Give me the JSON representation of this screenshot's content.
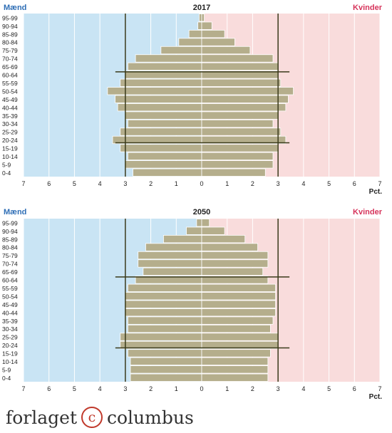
{
  "logo": {
    "before": "forlaget",
    "mark": "c",
    "after": "columbus"
  },
  "colors": {
    "men_bg": "#c9e4f4",
    "women_bg": "#f9dcdc",
    "bar": "#b5ae8c",
    "men_text": "#2d6db5",
    "women_text": "#d6335a",
    "guide": "#3a3a1a"
  },
  "chart_data": [
    {
      "type": "bar",
      "title": "2017",
      "left_label": "Mænd",
      "right_label": "Kvinder",
      "unit_label": "Pct.",
      "xlim": [
        -7,
        7
      ],
      "x_ticks": [
        "7",
        "6",
        "5",
        "4",
        "3",
        "2",
        "1",
        "0",
        "1",
        "2",
        "3",
        "4",
        "5",
        "6",
        "7"
      ],
      "categories": [
        "95-99",
        "90-94",
        "85-89",
        "80-84",
        "75-79",
        "70-74",
        "65-69",
        "60-64",
        "55-59",
        "50-54",
        "45-49",
        "40-44",
        "35-39",
        "30-34",
        "25-29",
        "20-24",
        "15-19",
        "10-14",
        "5-9",
        "0-4"
      ],
      "series": [
        {
          "name": "Mænd",
          "values": [
            0.1,
            0.15,
            0.5,
            0.9,
            1.6,
            2.6,
            2.9,
            3.0,
            3.2,
            3.7,
            3.4,
            3.3,
            3.0,
            2.9,
            3.2,
            3.5,
            3.2,
            2.9,
            3.0,
            2.7
          ]
        },
        {
          "name": "Kvinder",
          "values": [
            0.1,
            0.4,
            0.9,
            1.3,
            1.9,
            2.8,
            3.0,
            3.0,
            3.1,
            3.6,
            3.4,
            3.3,
            3.0,
            2.8,
            3.1,
            3.3,
            3.0,
            2.8,
            2.8,
            2.5
          ]
        }
      ]
    },
    {
      "type": "bar",
      "title": "2050",
      "left_label": "Mænd",
      "right_label": "Kvinder",
      "unit_label": "Pct.",
      "xlim": [
        -7,
        7
      ],
      "x_ticks": [
        "7",
        "6",
        "5",
        "4",
        "3",
        "2",
        "1",
        "0",
        "1",
        "2",
        "3",
        "4",
        "5",
        "6",
        "7"
      ],
      "categories": [
        "95-99",
        "90-94",
        "85-89",
        "80-84",
        "75-79",
        "70-74",
        "65-69",
        "60-64",
        "55-59",
        "50-54",
        "45-49",
        "40-44",
        "35-39",
        "30-34",
        "25-29",
        "20-24",
        "15-19",
        "10-14",
        "5-9",
        "0-4"
      ],
      "series": [
        {
          "name": "Mænd",
          "values": [
            0.2,
            0.6,
            1.5,
            2.2,
            2.5,
            2.5,
            2.3,
            2.6,
            2.9,
            3.0,
            3.0,
            3.0,
            2.9,
            2.9,
            3.2,
            3.2,
            2.9,
            2.8,
            2.8,
            2.8
          ]
        },
        {
          "name": "Kvinder",
          "values": [
            0.3,
            0.9,
            1.7,
            2.2,
            2.6,
            2.6,
            2.4,
            2.6,
            2.9,
            2.9,
            2.9,
            2.9,
            2.8,
            2.7,
            3.0,
            3.0,
            2.7,
            2.6,
            2.6,
            2.6
          ]
        }
      ]
    }
  ]
}
